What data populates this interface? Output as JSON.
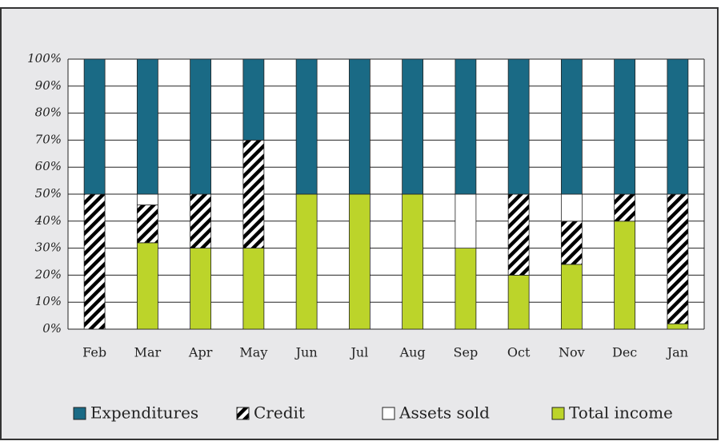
{
  "chart_data": {
    "type": "stacked_bar",
    "categories": [
      "Feb",
      "Mar",
      "Apr",
      "May",
      "Jun",
      "Jul",
      "Aug",
      "Sep",
      "Oct",
      "Nov",
      "Dec",
      "Jan"
    ],
    "series": [
      {
        "name": "Total income",
        "color": "#bcd42a",
        "values": [
          0,
          32,
          30,
          30,
          50,
          50,
          50,
          30,
          20,
          24,
          40,
          2
        ]
      },
      {
        "name": "Credit",
        "color": "#000000",
        "pattern": "hatch",
        "values": [
          50,
          14,
          20,
          40,
          0,
          0,
          0,
          0,
          30,
          16,
          10,
          48
        ]
      },
      {
        "name": "Assets sold",
        "color": "#ffffff",
        "values": [
          0,
          4,
          0,
          0,
          0,
          0,
          0,
          20,
          0,
          10,
          0,
          0
        ]
      },
      {
        "name": "Expenditures",
        "color": "#1a6a85",
        "values": [
          50,
          50,
          50,
          30,
          50,
          50,
          50,
          50,
          50,
          50,
          50,
          50
        ]
      }
    ],
    "legend_order": [
      3,
      1,
      2,
      0
    ],
    "ylim": [
      0,
      100
    ],
    "yticks": [
      {
        "value": 0,
        "label": "0%"
      },
      {
        "value": 10,
        "label": "10%"
      },
      {
        "value": 20,
        "label": "20%"
      },
      {
        "value": 30,
        "label": "30%"
      },
      {
        "value": 40,
        "label": "40%"
      },
      {
        "value": 50,
        "label": "50%"
      },
      {
        "value": 60,
        "label": "60%"
      },
      {
        "value": 70,
        "label": "70%"
      },
      {
        "value": 80,
        "label": "80%"
      },
      {
        "value": 90,
        "label": "90%"
      },
      {
        "value": 100,
        "label": "100%"
      }
    ],
    "grid": true
  }
}
